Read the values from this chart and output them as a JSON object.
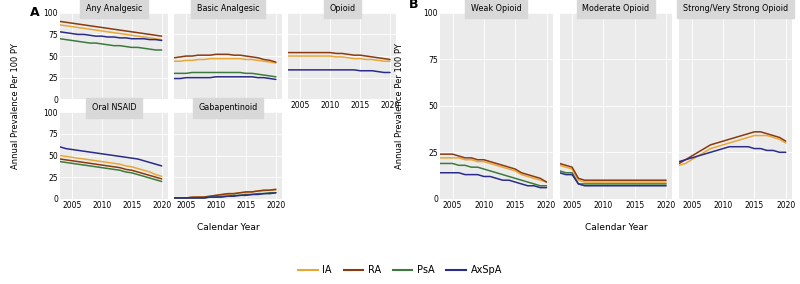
{
  "years": [
    2003,
    2004,
    2005,
    2006,
    2007,
    2008,
    2009,
    2010,
    2011,
    2012,
    2013,
    2014,
    2015,
    2016,
    2017,
    2018,
    2019,
    2020
  ],
  "colors": {
    "IA": "#E8A838",
    "RA": "#8B3A0F",
    "PsA": "#3D7A3D",
    "AxSpA": "#2B2B8A"
  },
  "panel_A": {
    "Any Analgesic": {
      "IA": [
        86,
        85,
        84,
        83,
        82,
        81,
        80,
        79,
        78,
        77,
        76,
        75,
        74,
        73,
        72,
        71,
        70,
        69
      ],
      "RA": [
        90,
        89,
        88,
        87,
        86,
        85,
        84,
        83,
        82,
        81,
        80,
        79,
        78,
        77,
        76,
        75,
        74,
        73
      ],
      "PsA": [
        70,
        69,
        68,
        67,
        66,
        65,
        65,
        64,
        63,
        62,
        62,
        61,
        60,
        60,
        59,
        58,
        57,
        57
      ],
      "AxSpA": [
        78,
        77,
        76,
        75,
        75,
        74,
        73,
        73,
        72,
        72,
        71,
        71,
        70,
        70,
        70,
        69,
        69,
        68
      ]
    },
    "Basic Analgesic": {
      "IA": [
        44,
        44,
        45,
        45,
        46,
        46,
        47,
        47,
        47,
        47,
        47,
        47,
        46,
        46,
        45,
        44,
        43,
        42
      ],
      "RA": [
        48,
        49,
        50,
        50,
        51,
        51,
        51,
        52,
        52,
        52,
        51,
        51,
        50,
        49,
        48,
        46,
        45,
        43
      ],
      "PsA": [
        30,
        30,
        30,
        31,
        31,
        31,
        31,
        31,
        31,
        31,
        31,
        31,
        30,
        30,
        29,
        28,
        27,
        26
      ],
      "AxSpA": [
        24,
        24,
        25,
        25,
        25,
        25,
        25,
        26,
        26,
        26,
        26,
        26,
        26,
        26,
        25,
        25,
        24,
        23
      ]
    },
    "Opioid": {
      "IA": [
        50,
        50,
        50,
        50,
        50,
        50,
        50,
        50,
        49,
        49,
        48,
        47,
        47,
        46,
        46,
        45,
        44,
        44
      ],
      "RA": [
        54,
        54,
        54,
        54,
        54,
        54,
        54,
        54,
        53,
        53,
        52,
        51,
        51,
        50,
        49,
        48,
        47,
        46
      ],
      "PsA": [
        null,
        null,
        null,
        null,
        null,
        null,
        null,
        null,
        null,
        null,
        null,
        null,
        null,
        null,
        null,
        null,
        null,
        null
      ],
      "AxSpA": [
        34,
        34,
        34,
        34,
        34,
        34,
        34,
        34,
        34,
        34,
        34,
        34,
        33,
        33,
        33,
        32,
        31,
        31
      ]
    },
    "Oral NSAID": {
      "IA": [
        50,
        49,
        48,
        47,
        46,
        45,
        44,
        43,
        42,
        41,
        40,
        38,
        37,
        35,
        33,
        31,
        28,
        26
      ],
      "RA": [
        46,
        45,
        44,
        43,
        42,
        41,
        40,
        39,
        38,
        37,
        36,
        34,
        33,
        31,
        29,
        27,
        25,
        23
      ],
      "PsA": [
        43,
        42,
        41,
        40,
        39,
        38,
        37,
        36,
        35,
        34,
        33,
        31,
        30,
        28,
        26,
        24,
        22,
        20
      ],
      "AxSpA": [
        60,
        58,
        57,
        56,
        55,
        54,
        53,
        52,
        51,
        50,
        49,
        48,
        47,
        46,
        44,
        42,
        40,
        38
      ]
    },
    "Gabapentinoid": {
      "IA": [
        1,
        1,
        1,
        1,
        2,
        2,
        3,
        4,
        5,
        5,
        6,
        7,
        7,
        8,
        9,
        9,
        10,
        10
      ],
      "RA": [
        1,
        1,
        1,
        2,
        2,
        2,
        3,
        4,
        5,
        6,
        6,
        7,
        8,
        8,
        9,
        10,
        10,
        11
      ],
      "PsA": [
        1,
        1,
        1,
        1,
        1,
        1,
        2,
        2,
        3,
        3,
        4,
        4,
        5,
        5,
        6,
        6,
        7,
        7
      ],
      "AxSpA": [
        1,
        1,
        1,
        1,
        1,
        1,
        2,
        2,
        2,
        3,
        3,
        4,
        4,
        5,
        5,
        6,
        6,
        7
      ]
    }
  },
  "panel_B": {
    "Weak Opioid": {
      "IA": [
        22,
        22,
        22,
        22,
        21,
        21,
        20,
        20,
        19,
        18,
        17,
        16,
        15,
        13,
        12,
        11,
        10,
        9
      ],
      "RA": [
        24,
        24,
        24,
        23,
        22,
        22,
        21,
        21,
        20,
        19,
        18,
        17,
        16,
        14,
        13,
        12,
        11,
        9
      ],
      "PsA": [
        19,
        19,
        19,
        18,
        18,
        17,
        17,
        16,
        15,
        14,
        13,
        12,
        11,
        10,
        9,
        8,
        7,
        7
      ],
      "AxSpA": [
        14,
        14,
        14,
        14,
        13,
        13,
        13,
        12,
        12,
        11,
        10,
        10,
        9,
        8,
        7,
        7,
        6,
        6
      ]
    },
    "Moderate Opioid": {
      "IA": [
        18,
        17,
        16,
        10,
        9,
        9,
        9,
        9,
        9,
        9,
        9,
        9,
        9,
        9,
        9,
        9,
        9,
        9
      ],
      "RA": [
        19,
        18,
        17,
        11,
        10,
        10,
        10,
        10,
        10,
        10,
        10,
        10,
        10,
        10,
        10,
        10,
        10,
        10
      ],
      "PsA": [
        15,
        14,
        14,
        8,
        8,
        8,
        8,
        8,
        8,
        8,
        8,
        8,
        8,
        8,
        8,
        8,
        8,
        8
      ],
      "AxSpA": [
        14,
        13,
        13,
        8,
        7,
        7,
        7,
        7,
        7,
        7,
        7,
        7,
        7,
        7,
        7,
        7,
        7,
        7
      ]
    },
    "Strong/Very Strong Opioid": {
      "IA": [
        18,
        19,
        21,
        23,
        25,
        27,
        28,
        29,
        30,
        31,
        32,
        33,
        34,
        34,
        34,
        33,
        32,
        30
      ],
      "RA": [
        19,
        21,
        23,
        25,
        27,
        29,
        30,
        31,
        32,
        33,
        34,
        35,
        36,
        36,
        35,
        34,
        33,
        31
      ],
      "PsA": [
        null,
        null,
        null,
        null,
        null,
        null,
        null,
        null,
        null,
        null,
        null,
        null,
        null,
        null,
        null,
        null,
        null,
        null
      ],
      "AxSpA": [
        20,
        21,
        22,
        23,
        24,
        25,
        26,
        27,
        28,
        28,
        28,
        28,
        27,
        27,
        26,
        26,
        25,
        25
      ]
    }
  },
  "bg_color": "#EBEBEB",
  "grid_color": "#FFFFFF",
  "linewidth": 1.1,
  "title_bg": "#D8D8D8",
  "fig_width": 8.0,
  "fig_height": 2.84,
  "dpi": 100
}
